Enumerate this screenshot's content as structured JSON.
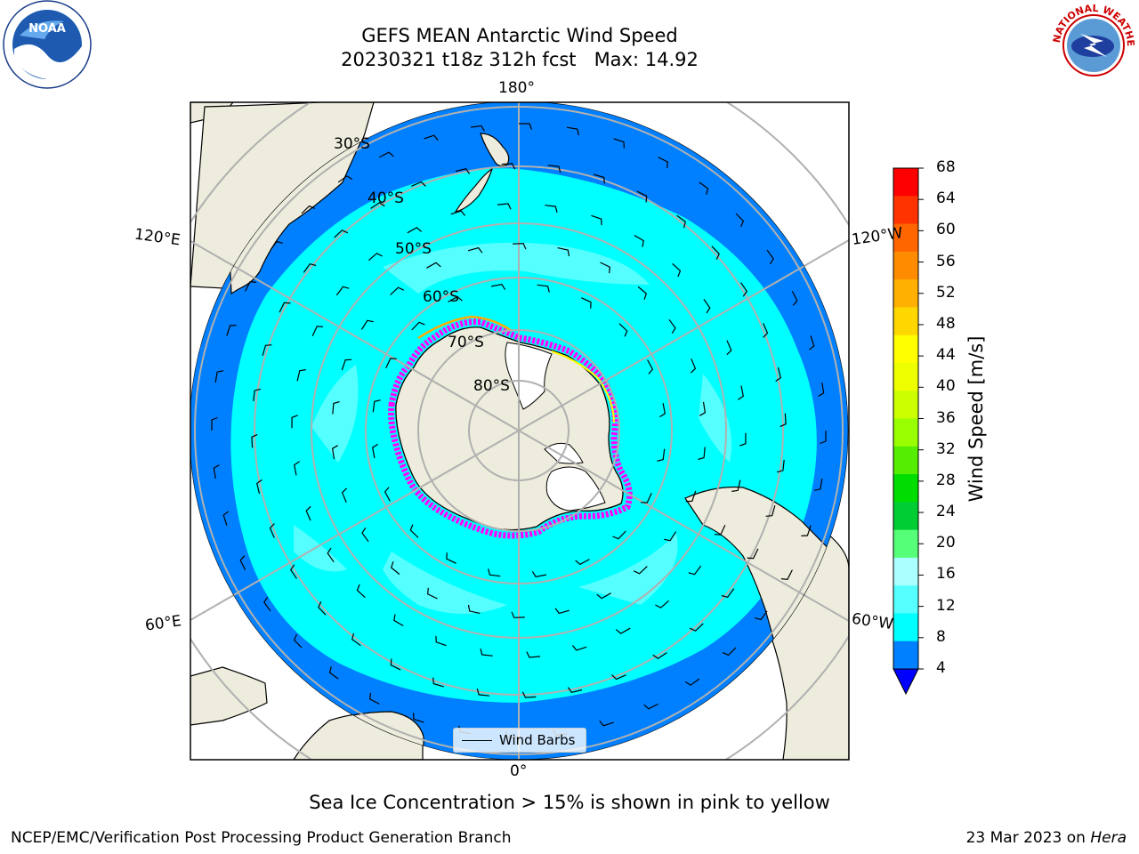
{
  "title": "GEFS MEAN Antarctic Wind Speed",
  "subtitle": "20230321 t18z 312h fcst   Max: 14.92",
  "map": {
    "projection": "south-polar-stereographic",
    "longitude_labels": {
      "top": "180°",
      "bottom": "0°",
      "upper_left": "120°E",
      "lower_left": "60°E",
      "upper_right": "120°W",
      "lower_right": "60°W"
    },
    "latitude_labels": [
      "30°S",
      "40°S",
      "50°S",
      "60°S",
      "70°S",
      "80°S"
    ],
    "grid": true,
    "ocean_color": "#0080ff",
    "land_color": "#eeecdc",
    "wind_field": "wind speed 4–16 m/s, mostly 8–16 m/s over the Southern Ocean",
    "sea_ice_colors": [
      "#ff00ff",
      "#ffaa00",
      "#ffff00"
    ]
  },
  "legend": {
    "label": "Wind Barbs"
  },
  "colorbar": {
    "label": "Wind Speed [m/s]",
    "ticks": [
      "68",
      "64",
      "60",
      "56",
      "52",
      "48",
      "44",
      "40",
      "36",
      "32",
      "28",
      "24",
      "20",
      "16",
      "12",
      "8",
      "4"
    ],
    "colors": [
      "#ff0000",
      "#ff3300",
      "#ff6600",
      "#ff8c00",
      "#ffb000",
      "#ffd700",
      "#ffff00",
      "#eeff00",
      "#ccff00",
      "#99ff00",
      "#55ee00",
      "#00dd00",
      "#00cc33",
      "#55ff77",
      "#aaffff",
      "#55ffff",
      "#00ffff",
      "#0080ff"
    ],
    "under_color": "#0000ff"
  },
  "note": "Sea Ice Concentration > 15% is shown in pink to yellow",
  "footer": {
    "left": "NCEP/EMC/Verification Post Processing Product Generation Branch",
    "right_date": "23 Mar 2023 on ",
    "right_host": "Hera"
  },
  "logos": {
    "noaa_text": "NOAA",
    "nws_text": "NATIONAL WEATHER SERVICE"
  }
}
